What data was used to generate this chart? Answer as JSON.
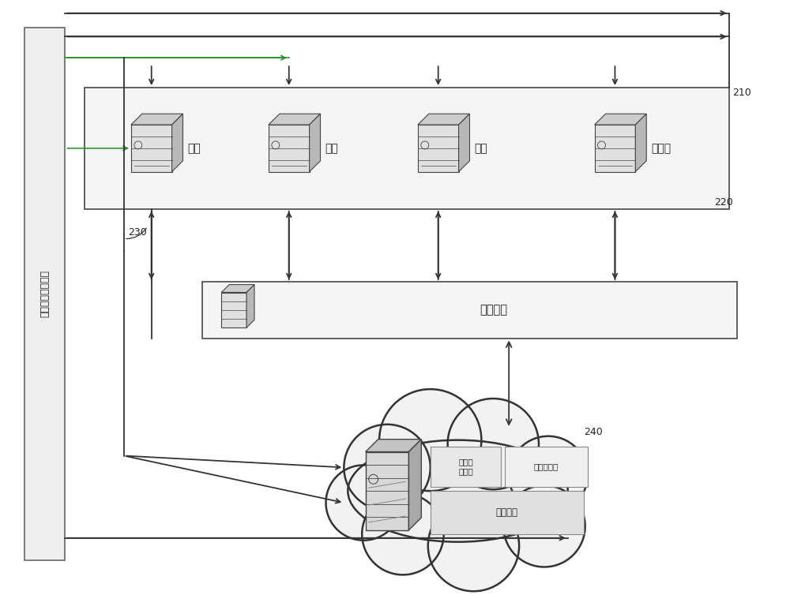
{
  "bg_color": "#ffffff",
  "text_left_vertical": "保费试算通用服务",
  "channels": [
    "电销",
    "网站",
    "电投",
    "銀保通"
  ],
  "frontend_label": "前端系统",
  "core_label_top_left": "保费试\n算接口",
  "core_label_top_right": "投保单录入",
  "core_label_bottom": "核心系统",
  "label_210": "210",
  "label_220": "220",
  "label_230": "230",
  "label_240": "240",
  "lc": "#444444",
  "arrow_color": "#333333",
  "green_color": "#228B22",
  "box_fill": "#f5f5f5",
  "left_box_fill": "#eeeeee"
}
